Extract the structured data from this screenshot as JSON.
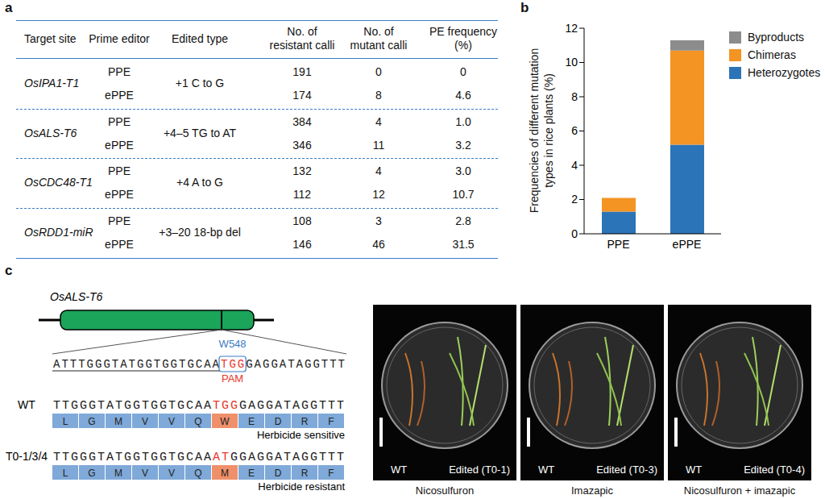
{
  "panel_labels": [
    "a",
    "b",
    "c"
  ],
  "panel_a": {
    "table": {
      "header": [
        [
          "Target site"
        ],
        [
          "Prime editor"
        ],
        [
          "Edited type"
        ],
        [
          "No. of",
          "resistant calli"
        ],
        [
          "No. of",
          "mutant calli"
        ],
        [
          "PE frequency",
          "(%)"
        ]
      ],
      "groups": [
        {
          "target_site": "OsIPA1-T1",
          "edited_type": "+1 C to G",
          "rows": [
            [
              "PPE",
              "191",
              "0",
              "0"
            ],
            [
              "ePPE",
              "174",
              "8",
              "4.6"
            ]
          ]
        },
        {
          "target_site": "OsALS-T6",
          "edited_type": "+4–5 TG to AT",
          "rows": [
            [
              "PPE",
              "384",
              "4",
              "1.0"
            ],
            [
              "ePPE",
              "346",
              "11",
              "3.2"
            ]
          ]
        },
        {
          "target_site": "OsCDC48-T1",
          "edited_type": "+4 A to G",
          "rows": [
            [
              "PPE",
              "132",
              "4",
              "3.0"
            ],
            [
              "ePPE",
              "112",
              "12",
              "10.7"
            ]
          ]
        },
        {
          "target_site": "OsRDD1-miR",
          "edited_type": "+3–20 18-bp del",
          "rows": [
            [
              "PPE",
              "108",
              "3",
              "2.8"
            ],
            [
              "ePPE",
              "146",
              "46",
              "31.5"
            ]
          ]
        }
      ]
    }
  },
  "chart_data": {
    "type": "bar",
    "stacked": true,
    "categories": [
      "PPE",
      "ePPE"
    ],
    "y_label": "Frequencies of different mutation types in rice plants (%)",
    "ylim": [
      0,
      12
    ],
    "yticks": [
      0,
      2,
      4,
      6,
      8,
      10,
      12
    ],
    "legend": "top-right",
    "series": [
      {
        "name": "Heterozygotes",
        "color": "#2b74b8",
        "values": [
          1.3,
          5.2
        ]
      },
      {
        "name": "Chimeras",
        "color": "#f39423",
        "values": [
          0.8,
          5.5
        ]
      },
      {
        "name": "Byproducts",
        "color": "#8c8c8c",
        "values": [
          0,
          0.6
        ]
      }
    ]
  },
  "panel_c": {
    "gene": "OsALS-T6",
    "residue": "W548",
    "pam_label": "PAM",
    "reference": {
      "before": "ATTTGGGTATGGTGGTGCAA",
      "highlight": "TGG",
      "after": "GAGGATAGGTTT"
    },
    "rows": [
      {
        "label": "WT",
        "sequence": {
          "before": "TTGGGTATGGTGGTGCAA",
          "highlight": "TGG",
          "after": "GAGGATAGGTTT"
        },
        "amino_acids": [
          "L",
          "G",
          "M",
          "V",
          "V",
          "Q",
          "W",
          "E",
          "D",
          "R",
          "F"
        ],
        "phenotype": "Herbicide sensitive"
      },
      {
        "label": "T0-1/3/4",
        "sequence": {
          "before": "TTGGGTATGGTGGTGCAA",
          "highlight": "AT",
          "after": "GGAGGATAGGTTT"
        },
        "amino_acids": [
          "L",
          "G",
          "M",
          "V",
          "V",
          "Q",
          "M",
          "E",
          "D",
          "R",
          "F"
        ],
        "phenotype": "Herbicide resistant"
      }
    ],
    "photos": [
      {
        "left": "WT",
        "right": "Edited (T0-1)",
        "caption": "Nicosulfuron"
      },
      {
        "left": "WT",
        "right": "Edited (T0-3)",
        "caption": "Imazapic"
      },
      {
        "left": "WT",
        "right": "Edited (T0-4)",
        "caption": "Nicosulfuron + imazapic"
      }
    ]
  }
}
